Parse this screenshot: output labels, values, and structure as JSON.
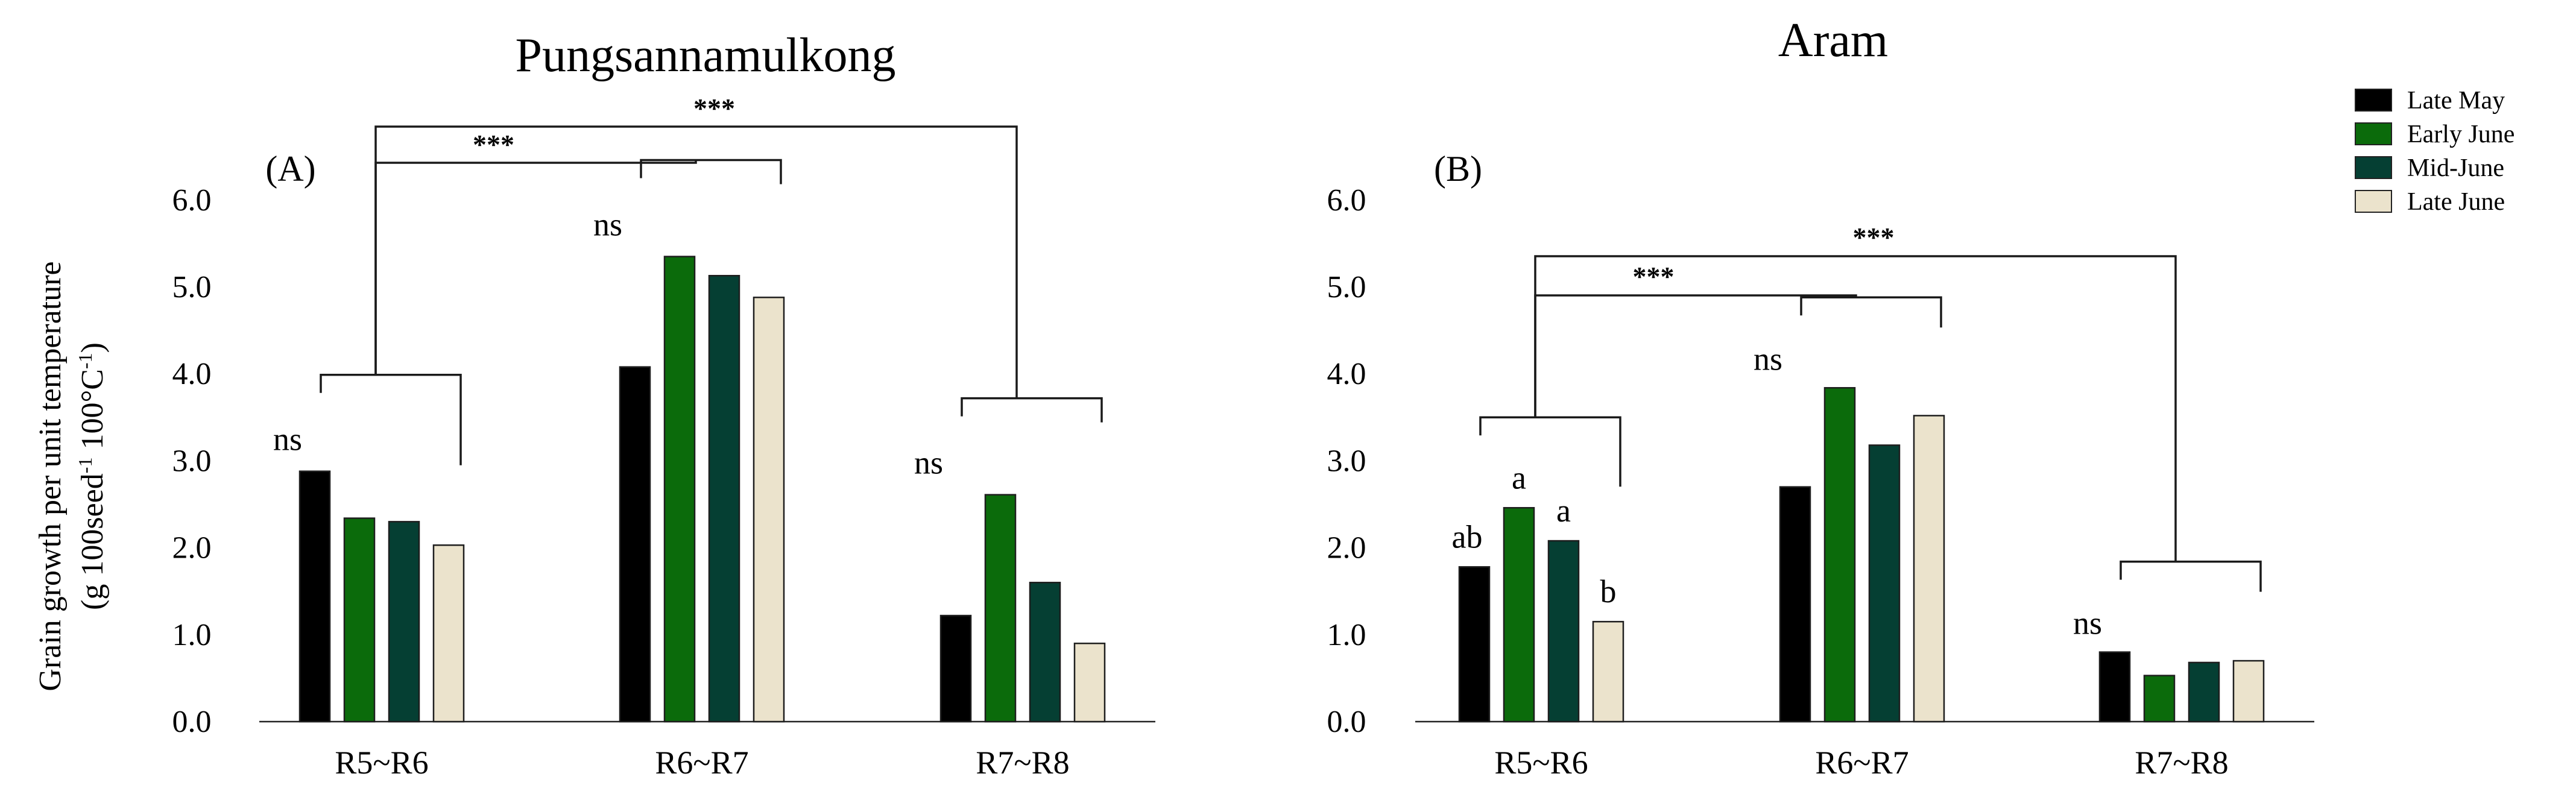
{
  "chart_data": [
    {
      "type": "bar",
      "panel_label": "(A)",
      "title": "Pungsannamulkong",
      "xlabel": "",
      "ylabel": "Grain growth per unit temperature",
      "ylabel_units": "(g 100seed",
      "ylabel_sup": "-1",
      "ylabel_units_mid": " 100°C",
      "ylabel_units_end": ")",
      "yticks": [
        "0.0",
        "1.0",
        "2.0",
        "3.0",
        "4.0",
        "5.0",
        "6.0"
      ],
      "ylim": [
        0,
        6
      ],
      "categories": [
        "R5~R6",
        "R6~R7",
        "R7~R8"
      ],
      "series": [
        {
          "name": "Late May",
          "values": [
            2.88,
            4.08,
            1.22
          ]
        },
        {
          "name": "Early June",
          "values": [
            2.34,
            5.35,
            2.61
          ]
        },
        {
          "name": "Mid-June",
          "values": [
            2.3,
            5.13,
            1.6
          ]
        },
        {
          "name": "Late June",
          "values": [
            2.03,
            4.88,
            0.9
          ]
        }
      ],
      "group_annotations": [
        "ns",
        "ns",
        "ns"
      ],
      "bar_letters": [
        [
          "",
          "",
          "",
          ""
        ],
        [
          "",
          "",
          "",
          ""
        ],
        [
          "",
          "",
          "",
          ""
        ]
      ],
      "comparisons": [
        {
          "from": "R5~R6",
          "to": "R6~R7",
          "label": "***"
        },
        {
          "from": "R5~R6",
          "to": "R7~R8",
          "label": "***"
        }
      ]
    },
    {
      "type": "bar",
      "panel_label": "(B)",
      "title": "Aram",
      "xlabel": "",
      "ylabel": "",
      "yticks": [
        "0.0",
        "1.0",
        "2.0",
        "3.0",
        "4.0",
        "5.0",
        "6.0"
      ],
      "ylim": [
        0,
        6
      ],
      "categories": [
        "R5~R6",
        "R6~R7",
        "R7~R8"
      ],
      "series": [
        {
          "name": "Late May",
          "values": [
            1.78,
            2.7,
            0.8
          ]
        },
        {
          "name": "Early June",
          "values": [
            2.46,
            3.84,
            0.53
          ]
        },
        {
          "name": "Mid-June",
          "values": [
            2.08,
            3.18,
            0.68
          ]
        },
        {
          "name": "Late June",
          "values": [
            1.15,
            3.52,
            0.7
          ]
        }
      ],
      "group_annotations": [
        "",
        "ns",
        "ns"
      ],
      "bar_letters": [
        [
          "ab",
          "a",
          "a",
          "b"
        ],
        [
          "",
          "",
          "",
          ""
        ],
        [
          "",
          "",
          "",
          ""
        ]
      ],
      "comparisons": [
        {
          "from": "R5~R6",
          "to": "R6~R7",
          "label": "***"
        },
        {
          "from": "R5~R6",
          "to": "R7~R8",
          "label": "***"
        }
      ]
    }
  ],
  "legend": {
    "entries": [
      {
        "name": "Late May",
        "color": "#000000"
      },
      {
        "name": "Early June",
        "color": "#0b6b0b"
      },
      {
        "name": "Mid-June",
        "color": "#053f33"
      },
      {
        "name": "Late June",
        "color": "#ebe3cc"
      }
    ]
  }
}
